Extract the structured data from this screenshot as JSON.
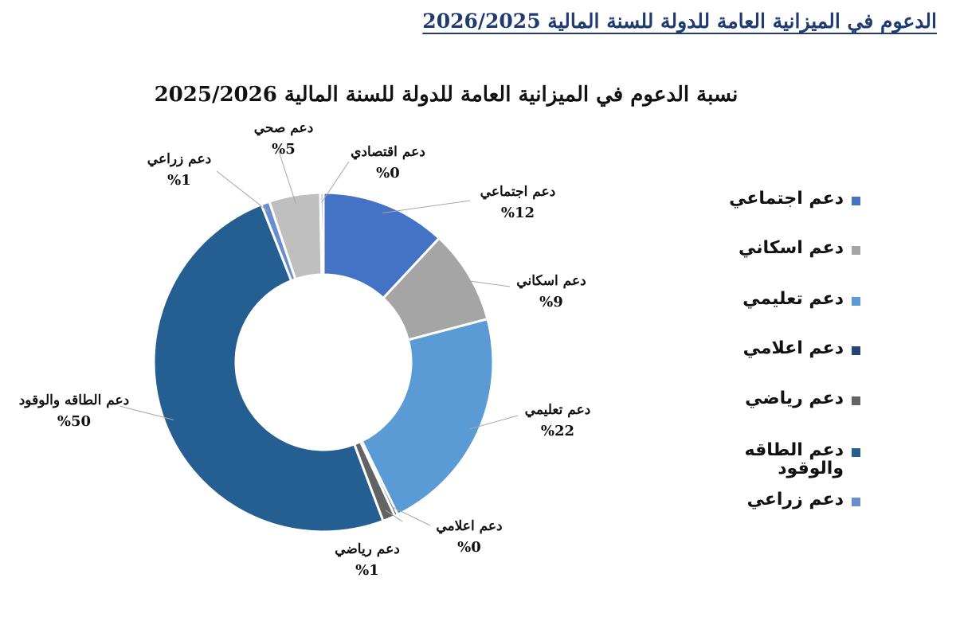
{
  "page_heading": "الدعوم في الميزانية العامة للدولة للسنة المالية 2026/2025",
  "chart_data": {
    "type": "pie",
    "variant": "donut",
    "title": "نسبة الدعوم في الميزانية العامة للدولة للسنة المالية 2025/2026",
    "slices": [
      {
        "name": "دعم اجتماعي",
        "value": 12,
        "label_value": "%12",
        "color": "#4472c4"
      },
      {
        "name": "دعم اسكاني",
        "value": 9,
        "label_value": "%9",
        "color": "#a5a5a5"
      },
      {
        "name": "دعم تعليمي",
        "value": 22,
        "label_value": "%22",
        "color": "#5b9bd5"
      },
      {
        "name": "دعم اعلامي",
        "value": 0.3,
        "label_value": "%0",
        "color": "#264478"
      },
      {
        "name": "دعم رياضي",
        "value": 1.2,
        "label_value": "%1",
        "color": "#636363"
      },
      {
        "name": "دعم الطاقه والوقود",
        "value": 50,
        "label_value": "%50",
        "color": "#255e91"
      },
      {
        "name": "دعم زراعي",
        "value": 0.8,
        "label_value": "%1",
        "color": "#698ed0"
      },
      {
        "name": "دعم صحي",
        "value": 4.9,
        "label_value": "%5",
        "color": "#bfbfbf"
      },
      {
        "name": "دعم اقتصادي",
        "value": 0.3,
        "label_value": "%0",
        "color": "#8faadc"
      }
    ],
    "legend": {
      "position": "right",
      "items": [
        {
          "label": "دعم اجتماعي",
          "color": "#4472c4"
        },
        {
          "label": "دعم اسكاني",
          "color": "#a5a5a5"
        },
        {
          "label": "دعم تعليمي",
          "color": "#5b9bd5"
        },
        {
          "label": "دعم اعلامي",
          "color": "#264478"
        },
        {
          "label": "دعم رياضي",
          "color": "#636363"
        },
        {
          "label": "دعم الطاقه والوقود",
          "color": "#255e91"
        },
        {
          "label": "دعم زراعي",
          "color": "#698ed0"
        }
      ]
    }
  }
}
